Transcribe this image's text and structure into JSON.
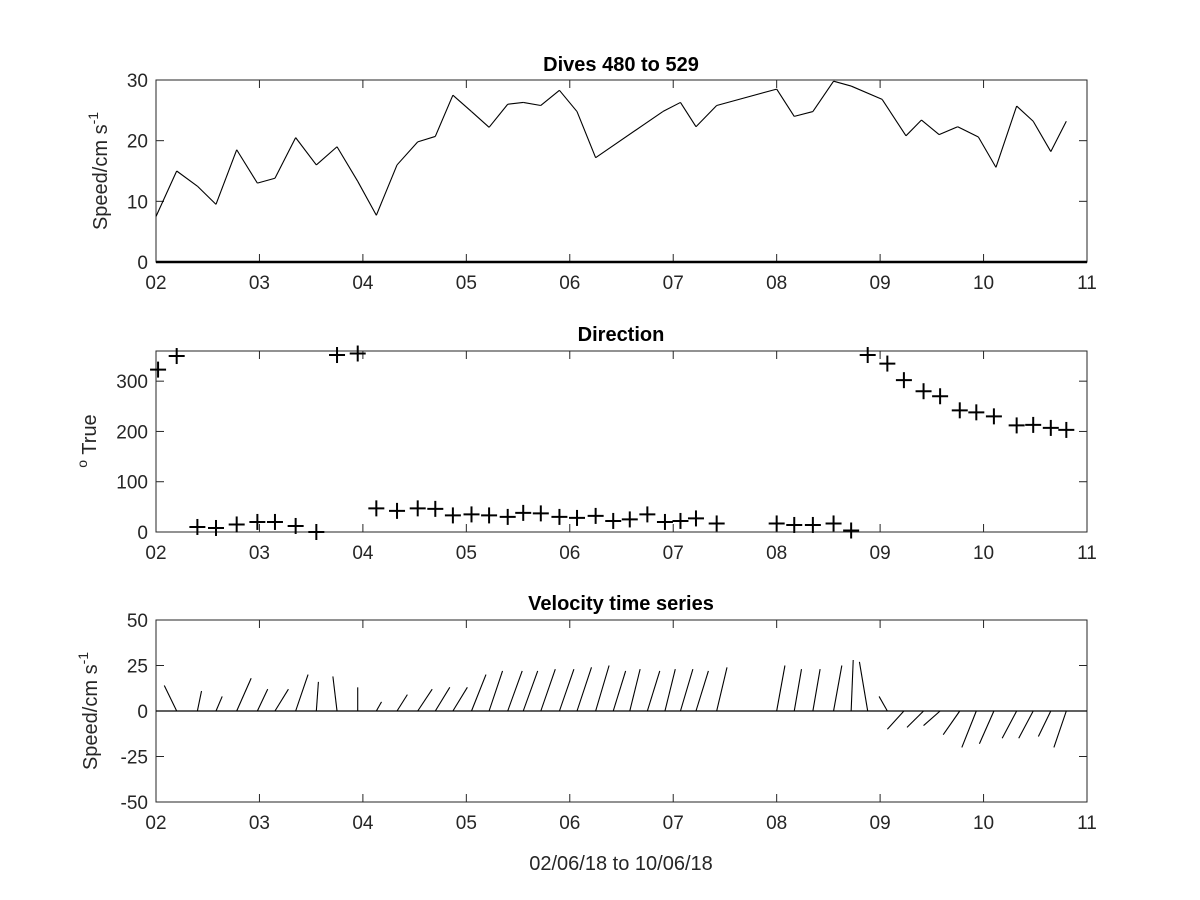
{
  "figure": {
    "xlabel": "02/06/18 to 10/06/18"
  },
  "chart_data": [
    {
      "type": "line",
      "title": "Dives 480 to 529",
      "ylabel_main": "Speed/cm s",
      "ylabel_sup": "-1",
      "xlabel": "",
      "xlim": [
        2,
        11
      ],
      "ylim": [
        0,
        30
      ],
      "xticks": [
        2,
        3,
        4,
        5,
        6,
        7,
        8,
        9,
        10,
        11
      ],
      "xtick_labels": [
        "02",
        "03",
        "04",
        "05",
        "06",
        "07",
        "08",
        "09",
        "10",
        "11"
      ],
      "yticks": [
        0,
        10,
        20,
        30
      ],
      "ytick_labels": [
        "0",
        "10",
        "20",
        "30"
      ],
      "grid": false,
      "x": [
        2.0,
        2.2,
        2.4,
        2.58,
        2.78,
        2.98,
        3.15,
        3.35,
        3.55,
        3.75,
        3.95,
        4.13,
        4.33,
        4.53,
        4.7,
        4.87,
        5.05,
        5.22,
        5.4,
        5.55,
        5.72,
        5.9,
        6.07,
        6.25,
        6.9,
        7.07,
        7.22,
        7.42,
        8.0,
        8.17,
        8.35,
        8.55,
        8.72,
        9.02,
        9.25,
        9.4,
        9.57,
        9.75,
        9.95,
        10.12,
        10.32,
        10.48,
        10.65,
        10.8
      ],
      "y": [
        7.5,
        15,
        12.5,
        9.5,
        18.5,
        13,
        13.8,
        20.5,
        16,
        19,
        13.3,
        7.7,
        16,
        19.8,
        20.7,
        27.5,
        24.8,
        22.2,
        26,
        26.3,
        25.8,
        28.3,
        24.8,
        17.2,
        24.8,
        26.3,
        22.3,
        25.8,
        28.5,
        24,
        24.8,
        29.8,
        29,
        26.8,
        20.8,
        23.4,
        21,
        22.3,
        20.6,
        15.6,
        25.7,
        23.2,
        18.2,
        23.2
      ]
    },
    {
      "type": "scatter",
      "title": "Direction",
      "ylabel_sup": "o",
      "ylabel_main": " True",
      "xlabel": "",
      "xlim": [
        2,
        11
      ],
      "ylim": [
        0,
        360
      ],
      "xticks": [
        2,
        3,
        4,
        5,
        6,
        7,
        8,
        9,
        10,
        11
      ],
      "xtick_labels": [
        "02",
        "03",
        "04",
        "05",
        "06",
        "07",
        "08",
        "09",
        "10",
        "11"
      ],
      "yticks": [
        0,
        100,
        200,
        300
      ],
      "ytick_labels": [
        "0",
        "100",
        "200",
        "300"
      ],
      "marker": "+",
      "grid": false,
      "x": [
        2.02,
        2.2,
        2.4,
        2.58,
        2.78,
        2.98,
        3.15,
        3.35,
        3.55,
        3.75,
        3.95,
        4.13,
        4.33,
        4.53,
        4.7,
        4.87,
        5.05,
        5.22,
        5.4,
        5.55,
        5.72,
        5.9,
        6.07,
        6.25,
        6.42,
        6.58,
        6.75,
        6.92,
        7.07,
        7.22,
        7.42,
        8.0,
        8.17,
        8.35,
        8.55,
        8.72,
        8.88,
        9.07,
        9.23,
        9.42,
        9.58,
        9.77,
        9.93,
        10.1,
        10.32,
        10.48,
        10.65,
        10.8
      ],
      "y": [
        323,
        350,
        10,
        8,
        15,
        20,
        20,
        12,
        0,
        352,
        355,
        47,
        42,
        47,
        46,
        33,
        35,
        33,
        30,
        38,
        37,
        30,
        28,
        32,
        22,
        25,
        35,
        20,
        22,
        27,
        17,
        17,
        14,
        14,
        17,
        3,
        352,
        335,
        302,
        280,
        270,
        242,
        238,
        230,
        212,
        213,
        207,
        203
      ]
    },
    {
      "type": "quiver",
      "title": "Velocity time series",
      "ylabel_main": "Speed/cm s",
      "ylabel_sup": "-1",
      "xlabel": "02/06/18 to 10/06/18",
      "xlim": [
        2,
        11
      ],
      "ylim": [
        -50,
        50
      ],
      "xticks": [
        2,
        3,
        4,
        5,
        6,
        7,
        8,
        9,
        10,
        11
      ],
      "xtick_labels": [
        "02",
        "03",
        "04",
        "05",
        "06",
        "07",
        "08",
        "09",
        "10",
        "11"
      ],
      "yticks": [
        -50,
        -25,
        0,
        25,
        50
      ],
      "ytick_labels": [
        "-50",
        "-25",
        "0",
        "25",
        "50"
      ],
      "grid": false,
      "baseline": 0,
      "x": [
        2.2,
        2.4,
        2.58,
        2.78,
        2.98,
        3.15,
        3.35,
        3.55,
        3.75,
        3.95,
        4.13,
        4.33,
        4.53,
        4.7,
        4.87,
        5.05,
        5.22,
        5.4,
        5.55,
        5.72,
        5.9,
        6.07,
        6.25,
        6.42,
        6.58,
        6.75,
        6.92,
        7.07,
        7.22,
        7.42,
        8.0,
        8.17,
        8.35,
        8.55,
        8.72,
        8.88,
        9.07,
        9.23,
        9.42,
        9.58,
        9.77,
        9.93,
        10.1,
        10.32,
        10.48,
        10.65,
        10.8
      ],
      "u": [
        -0.12,
        0.04,
        0.06,
        0.14,
        0.1,
        0.13,
        0.12,
        0.02,
        -0.04,
        0,
        0.05,
        0.1,
        0.14,
        0.14,
        0.14,
        0.14,
        0.13,
        0.14,
        0.14,
        0.14,
        0.14,
        0.14,
        0.13,
        0.12,
        0.1,
        0.12,
        0.1,
        0.12,
        0.12,
        0.1,
        0.08,
        0.07,
        0.07,
        0.08,
        0.02,
        -0.08,
        -0.08,
        -0.16,
        -0.16,
        -0.16,
        -0.16,
        -0.14,
        -0.14,
        -0.14,
        -0.14,
        -0.12,
        -0.12
      ],
      "v": [
        14,
        11,
        8,
        18,
        12,
        12,
        20,
        16,
        19,
        13,
        5,
        9,
        12,
        13,
        13,
        20,
        22,
        22,
        22,
        23,
        23,
        24,
        25,
        22,
        23,
        22,
        23,
        23,
        22,
        24,
        25,
        23,
        23,
        25,
        28,
        27,
        8,
        -10,
        -9,
        -8,
        -13,
        -20,
        -18,
        -15,
        -15,
        -14,
        -20
      ]
    }
  ]
}
